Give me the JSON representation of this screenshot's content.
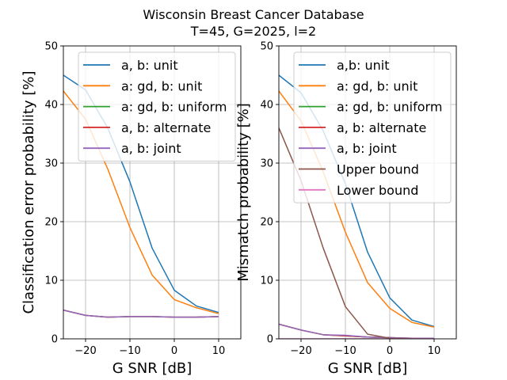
{
  "figure": {
    "title_line1": "Wisconsin Breast Cancer Database",
    "title_line2": "T=45, G=2025, l=2"
  },
  "chart_data": [
    {
      "type": "line",
      "title": "",
      "xlabel": "G SNR [dB]",
      "ylabel": "Classification error probability [%]",
      "xlim": [
        -25,
        15
      ],
      "ylim": [
        0,
        50
      ],
      "xticks": [
        -20,
        -10,
        0,
        10
      ],
      "yticks": [
        0,
        10,
        20,
        30,
        40,
        50
      ],
      "grid": true,
      "legend_position": "top-right",
      "x": [
        -25,
        -20,
        -15,
        -10,
        -5,
        0,
        5,
        10
      ],
      "series": [
        {
          "name": "a, b: unit",
          "color": "#1f77b4",
          "values": [
            45.0,
            42.5,
            36.0,
            26.8,
            15.5,
            8.3,
            5.6,
            4.5
          ]
        },
        {
          "name": "a: gd, b: unit",
          "color": "#ff7f0e",
          "values": [
            42.3,
            37.5,
            29.0,
            19.0,
            10.9,
            6.7,
            5.3,
            4.3
          ]
        },
        {
          "name": "a: gd, b: uniform",
          "color": "#2ca02c",
          "values": [
            4.9,
            4.0,
            3.7,
            3.8,
            3.8,
            3.7,
            3.7,
            3.8
          ]
        },
        {
          "name": "a, b: alternate",
          "color": "#d62728",
          "values": [
            4.9,
            4.0,
            3.7,
            3.8,
            3.8,
            3.7,
            3.7,
            3.8
          ]
        },
        {
          "name": "a, b: joint",
          "color": "#9467bd",
          "values": [
            4.9,
            4.0,
            3.7,
            3.8,
            3.8,
            3.7,
            3.7,
            3.8
          ]
        }
      ]
    },
    {
      "type": "line",
      "title": "",
      "xlabel": "G SNR [dB]",
      "ylabel": "Mismatch probability [%]",
      "xlim": [
        -25,
        15
      ],
      "ylim": [
        0,
        50
      ],
      "xticks": [
        -20,
        -10,
        0,
        10
      ],
      "yticks": [
        0,
        10,
        20,
        30,
        40,
        50
      ],
      "grid": true,
      "legend_position": "top-right",
      "x": [
        -25,
        -20,
        -15,
        -10,
        -5,
        0,
        5,
        10
      ],
      "series": [
        {
          "name": "a,b: unit",
          "color": "#1f77b4",
          "values": [
            45.0,
            42.0,
            35.5,
            26.5,
            14.8,
            7.0,
            3.2,
            2.1
          ]
        },
        {
          "name": "a: gd, b: unit",
          "color": "#ff7f0e",
          "values": [
            42.3,
            37.2,
            28.5,
            18.2,
            9.6,
            5.2,
            2.8,
            2.0
          ]
        },
        {
          "name": "a: gd, b: uniform",
          "color": "#2ca02c",
          "values": [
            2.5,
            1.5,
            0.7,
            0.5,
            0.3,
            0.2,
            0.1,
            0.1
          ]
        },
        {
          "name": "a, b: alternate",
          "color": "#d62728",
          "values": [
            2.5,
            1.5,
            0.7,
            0.5,
            0.3,
            0.2,
            0.1,
            0.1
          ]
        },
        {
          "name": "a, b: joint",
          "color": "#9467bd",
          "values": [
            2.5,
            1.5,
            0.7,
            0.6,
            0.3,
            0.2,
            0.1,
            0.1
          ]
        },
        {
          "name": "Upper bound",
          "color": "#8c564b",
          "values": [
            36.0,
            27.0,
            15.5,
            5.5,
            0.8,
            0.1,
            0.0,
            0.0
          ]
        },
        {
          "name": "Lower bound",
          "color": "#e377c2",
          "values": [
            0.0,
            0.0,
            0.0,
            0.0,
            0.0,
            0.0,
            0.0,
            0.0
          ]
        }
      ]
    }
  ]
}
